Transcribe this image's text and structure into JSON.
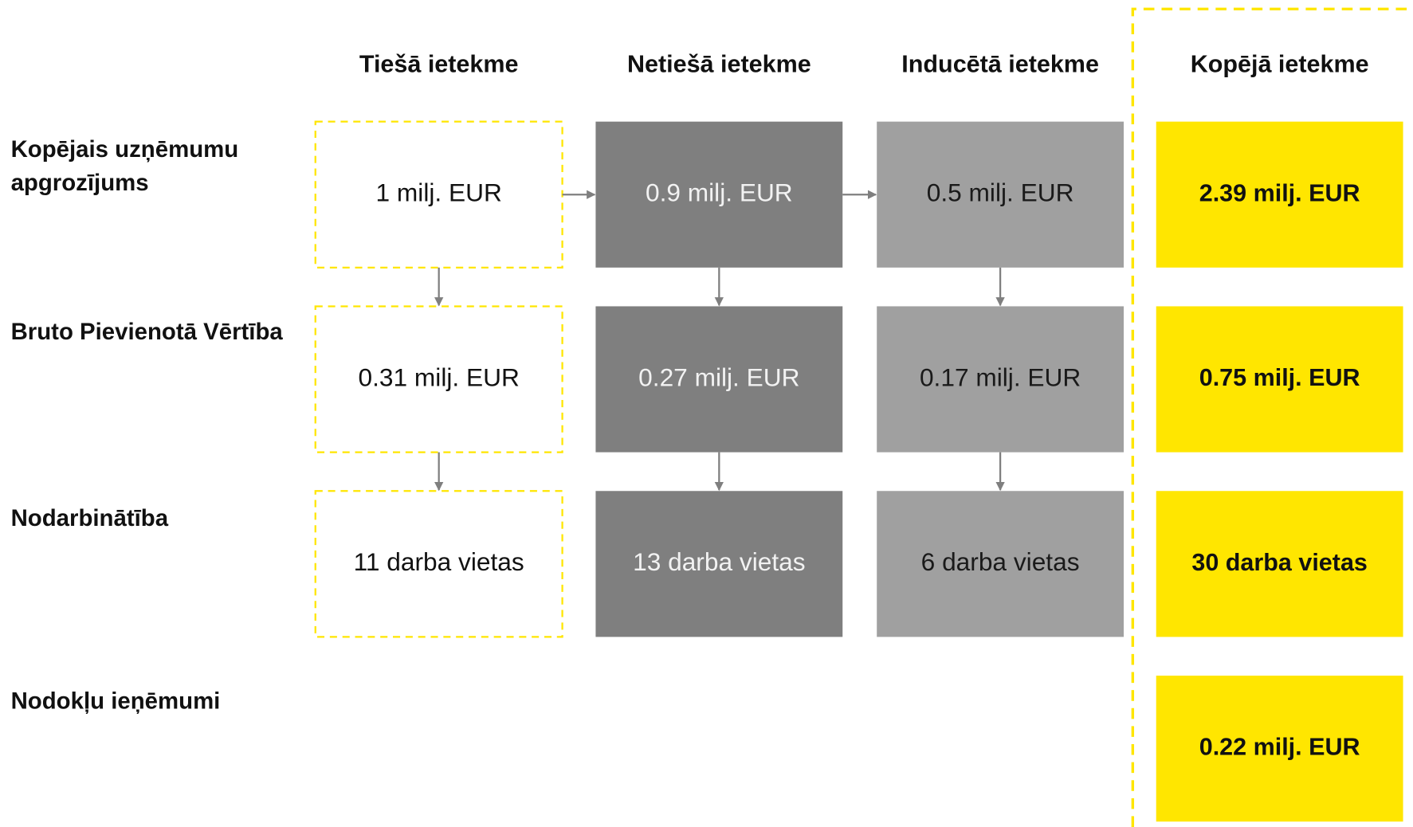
{
  "columns": [
    "Tiešā ietekme",
    "Netiešā ietekme",
    "Inducētā ietekme",
    "Kopējā ietekme"
  ],
  "rows": [
    {
      "label": [
        "Kopējais uzņēmumu",
        "apgrozījums"
      ],
      "impacts": [
        "1 milj. EUR",
        "0.9 milj. EUR",
        "0.5 milj. EUR"
      ],
      "total": "2.39 milj. EUR"
    },
    {
      "label": [
        "Bruto Pievienotā Vērtība"
      ],
      "impacts": [
        "0.31 milj. EUR",
        "0.27 milj. EUR",
        "0.17 milj. EUR"
      ],
      "total": "0.75 milj. EUR"
    },
    {
      "label": [
        "Nodarbinātība"
      ],
      "impacts": [
        "11 darba vietas",
        "13 darba vietas",
        "6 darba vietas"
      ],
      "total": "30 darba vietas"
    },
    {
      "label": [
        "Nodokļu ieņēmumi"
      ],
      "total": "0.22 milj. EUR"
    }
  ]
}
